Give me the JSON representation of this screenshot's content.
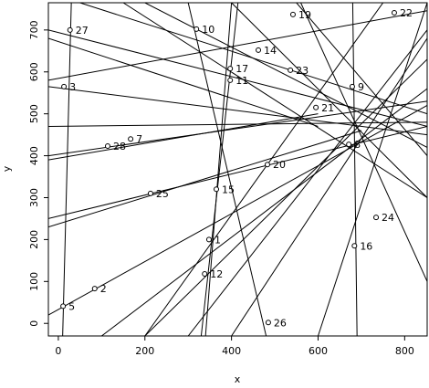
{
  "chart_data": {
    "type": "scatter",
    "xlabel": "x",
    "ylabel": "y",
    "xlim": [
      -23,
      852
    ],
    "ylim": [
      -30,
      765
    ],
    "xticks": [
      0,
      200,
      400,
      600,
      800
    ],
    "yticks": [
      0,
      100,
      200,
      300,
      400,
      500,
      600,
      700
    ],
    "color": "#000000",
    "labels": [
      "27",
      "10",
      "19",
      "22",
      "14",
      "17",
      "11",
      "23",
      "9",
      "3",
      "21",
      "8",
      "28",
      "7",
      "20",
      "25",
      "15",
      "24",
      "16",
      "1",
      "2",
      "12",
      "5",
      "26"
    ],
    "x": [
      27,
      319,
      542,
      776,
      462,
      397,
      397,
      536,
      679,
      13,
      595,
      671,
      114,
      167,
      483,
      213,
      365,
      734,
      684,
      348,
      84,
      338,
      11,
      485
    ],
    "y": [
      700,
      702,
      737,
      741,
      652,
      608,
      580,
      604,
      565,
      565,
      515,
      427,
      423,
      440,
      379,
      310,
      320,
      253,
      185,
      200,
      83,
      118,
      41,
      2
    ],
    "lines": [
      {
        "x": [
          -23,
          852
        ],
        "y": [
          580,
          746
        ]
      },
      {
        "x": [
          -23,
          852
        ],
        "y": [
          20,
          520
        ]
      },
      {
        "x": [
          -23,
          852
        ],
        "y": [
          700,
          470
        ]
      },
      {
        "x": [
          -23,
          852
        ],
        "y": [
          565,
          450
        ]
      },
      {
        "x": [
          -23,
          852
        ],
        "y": [
          400,
          530
        ]
      },
      {
        "x": [
          -23,
          600
        ],
        "y": [
          390,
          500
        ]
      },
      {
        "x": [
          400,
          340
        ],
        "y": [
          765,
          -30
        ]
      },
      {
        "x": [
          415,
          330
        ],
        "y": [
          765,
          -30
        ]
      },
      {
        "x": [
          690,
          680
        ],
        "y": [
          -30,
          765
        ]
      },
      {
        "x": [
          10,
          30
        ],
        "y": [
          -30,
          765
        ]
      },
      {
        "x": [
          480,
          300
        ],
        "y": [
          -30,
          765
        ]
      },
      {
        "x": [
          100,
          852
        ],
        "y": [
          -30,
          560
        ]
      },
      {
        "x": [
          200,
          852
        ],
        "y": [
          -30,
          630
        ]
      },
      {
        "x": [
          600,
          852
        ],
        "y": [
          -30,
          765
        ]
      },
      {
        "x": [
          852,
          560
        ],
        "y": [
          100,
          765
        ]
      },
      {
        "x": [
          -23,
          852
        ],
        "y": [
          250,
          470
        ]
      },
      {
        "x": [
          150,
          852
        ],
        "y": [
          765,
          300
        ]
      },
      {
        "x": [
          200,
          852
        ],
        "y": [
          765,
          420
        ]
      },
      {
        "x": [
          550,
          852
        ],
        "y": [
          765,
          400
        ]
      },
      {
        "x": [
          300,
          852
        ],
        "y": [
          -30,
          700
        ]
      },
      {
        "x": [
          -23,
          600
        ],
        "y": [
          680,
          470
        ]
      },
      {
        "x": [
          50,
          852
        ],
        "y": [
          765,
          500
        ]
      },
      {
        "x": [
          852,
          400
        ],
        "y": [
          680,
          -30
        ]
      },
      {
        "x": [
          -23,
          852
        ],
        "y": [
          470,
          480
        ]
      },
      {
        "x": [
          750,
          200
        ],
        "y": [
          765,
          -30
        ]
      },
      {
        "x": [
          852,
          400
        ],
        "y": [
          300,
          765
        ]
      },
      {
        "x": [
          -23,
          700
        ],
        "y": [
          230,
          460
        ]
      }
    ]
  }
}
